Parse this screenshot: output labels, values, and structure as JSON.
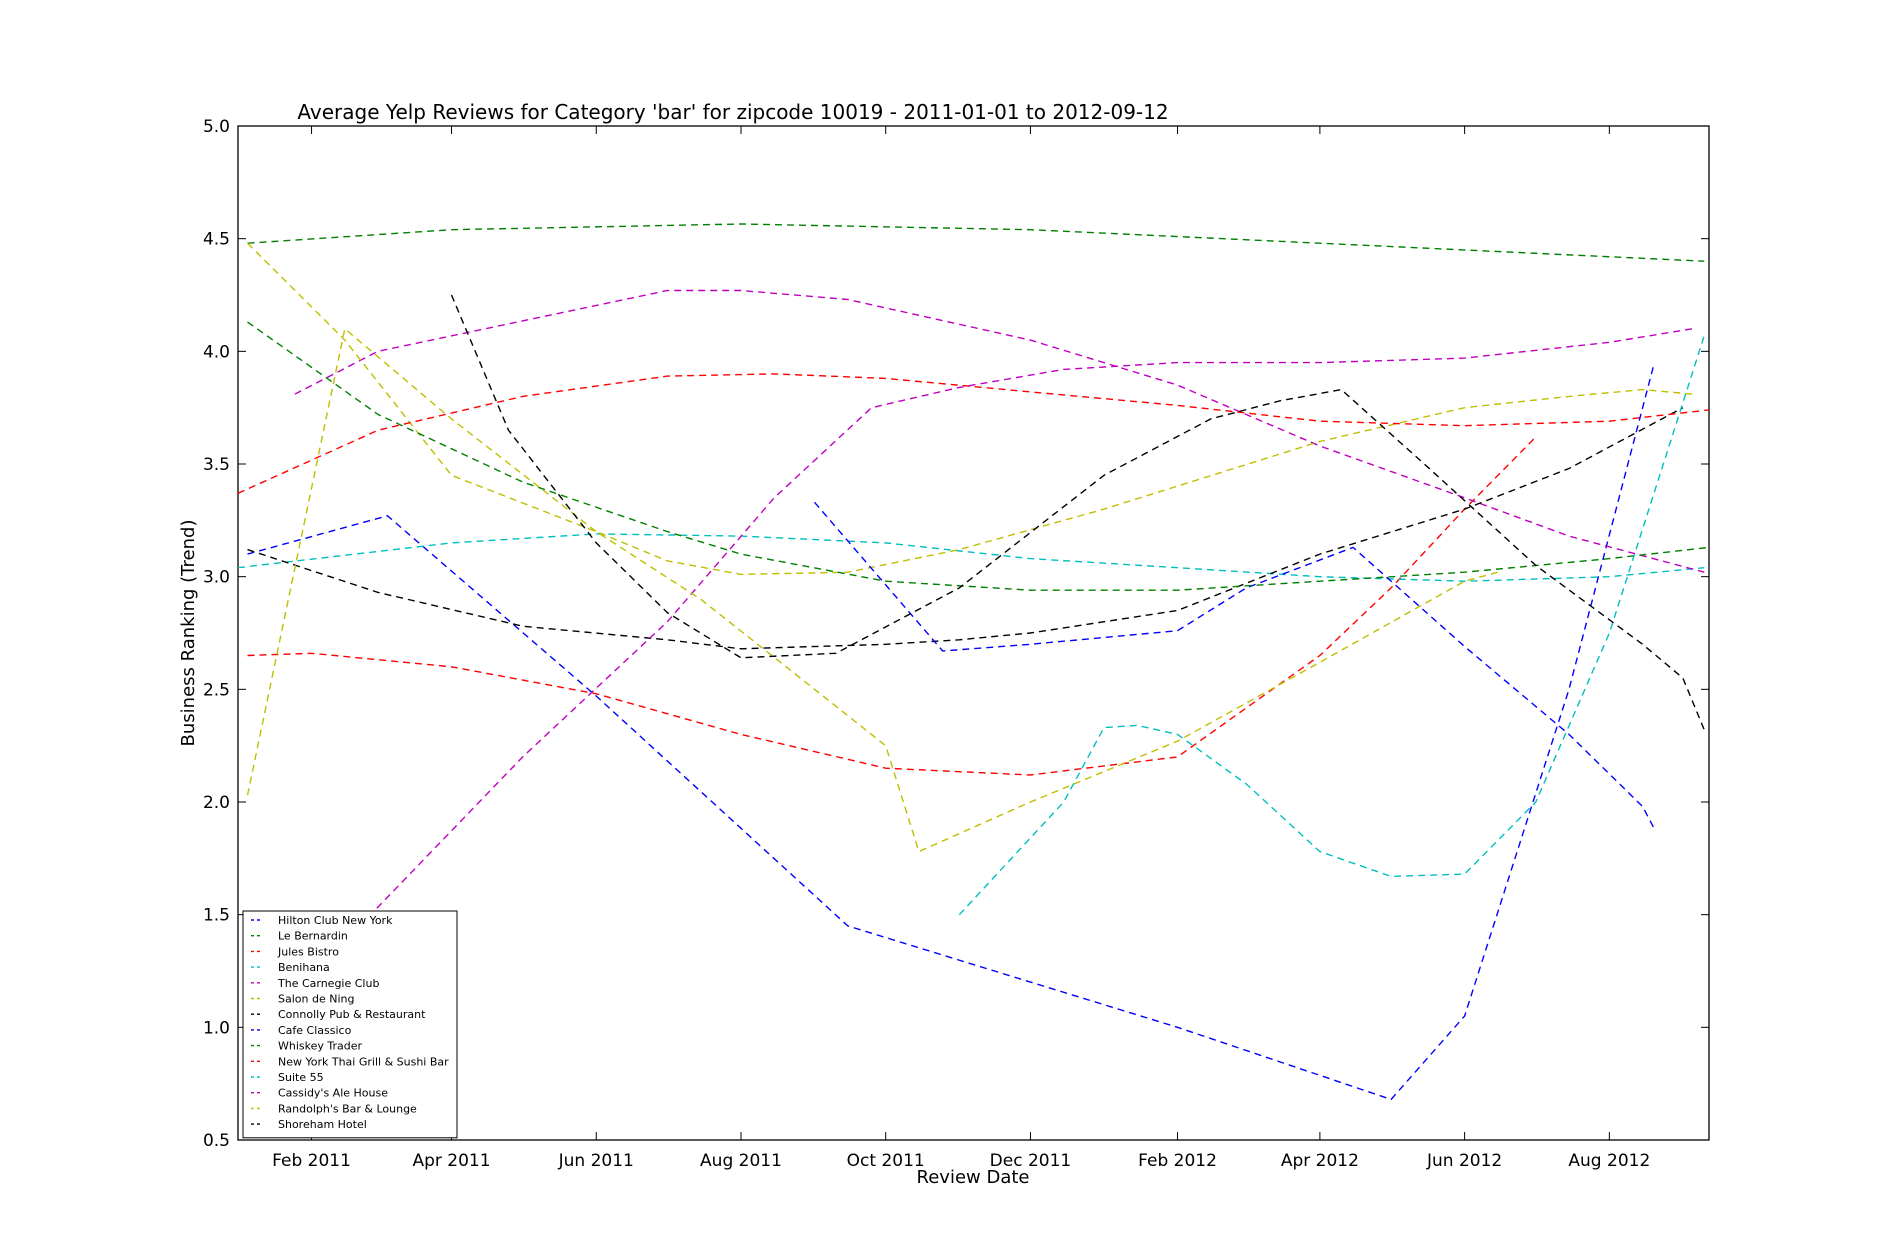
{
  "chart_data": {
    "type": "line",
    "title": "Average Yelp Reviews for Category 'bar' for zipcode 10019 - 2011-01-01 to 2012-09-12",
    "xlabel": "Review Date",
    "ylabel": "Business Ranking (Trend)",
    "xlim": [
      "2011-01-01",
      "2012-09-12"
    ],
    "ylim": [
      0.5,
      5.0
    ],
    "x_ticks": [
      {
        "date": "2011-02-01",
        "label": "Feb 2011"
      },
      {
        "date": "2011-04-01",
        "label": "Apr 2011"
      },
      {
        "date": "2011-06-01",
        "label": "Jun 2011"
      },
      {
        "date": "2011-08-01",
        "label": "Aug 2011"
      },
      {
        "date": "2011-10-01",
        "label": "Oct 2011"
      },
      {
        "date": "2011-12-01",
        "label": "Dec 2011"
      },
      {
        "date": "2012-02-01",
        "label": "Feb 2012"
      },
      {
        "date": "2012-04-01",
        "label": "Apr 2012"
      },
      {
        "date": "2012-06-01",
        "label": "Jun 2012"
      },
      {
        "date": "2012-08-01",
        "label": "Aug 2012"
      }
    ],
    "y_ticks": [
      "0.5",
      "1.0",
      "1.5",
      "2.0",
      "2.5",
      "3.0",
      "3.5",
      "4.0",
      "4.5",
      "5.0"
    ],
    "grid": false,
    "legend_position": "lower-left",
    "series": [
      {
        "name": "Hilton Club New York",
        "color": "#0000ff",
        "points": [
          [
            "2011-01-05",
            3.1
          ],
          [
            "2011-03-05",
            3.27
          ],
          [
            "2011-06-01",
            2.47
          ],
          [
            "2011-09-15",
            1.45
          ],
          [
            "2012-02-01",
            1.0
          ],
          [
            "2012-05-01",
            0.68
          ],
          [
            "2012-06-01",
            1.05
          ],
          [
            "2012-07-15",
            2.5
          ],
          [
            "2012-08-20",
            3.95
          ]
        ]
      },
      {
        "name": "Le Bernardin",
        "color": "#008000",
        "points": [
          [
            "2011-01-05",
            4.48
          ],
          [
            "2011-04-01",
            4.54
          ],
          [
            "2011-08-01",
            4.565
          ],
          [
            "2011-12-01",
            4.54
          ],
          [
            "2012-04-01",
            4.48
          ],
          [
            "2012-09-10",
            4.4
          ]
        ]
      },
      {
        "name": "Jules Bistro",
        "color": "#ff0000",
        "points": [
          [
            "2011-01-05",
            2.65
          ],
          [
            "2011-02-01",
            2.66
          ],
          [
            "2011-04-01",
            2.6
          ],
          [
            "2011-06-01",
            2.48
          ],
          [
            "2011-08-01",
            2.3
          ],
          [
            "2011-10-01",
            2.15
          ],
          [
            "2011-12-01",
            2.12
          ],
          [
            "2012-02-01",
            2.2
          ],
          [
            "2012-04-01",
            2.65
          ],
          [
            "2012-05-01",
            2.95
          ],
          [
            "2012-06-01",
            3.3
          ],
          [
            "2012-07-01",
            3.62
          ]
        ]
      },
      {
        "name": "Benihana",
        "color": "#00bfbf",
        "points": [
          [
            "2011-01-01",
            3.04
          ],
          [
            "2011-04-01",
            3.15
          ],
          [
            "2011-06-01",
            3.19
          ],
          [
            "2011-08-01",
            3.18
          ],
          [
            "2011-10-01",
            3.15
          ],
          [
            "2011-12-01",
            3.08
          ],
          [
            "2012-02-01",
            3.04
          ],
          [
            "2012-04-01",
            3.0
          ],
          [
            "2012-06-01",
            2.98
          ],
          [
            "2012-08-01",
            3.0
          ],
          [
            "2012-09-10",
            3.04
          ]
        ]
      },
      {
        "name": "The Carnegie Club",
        "color": "#bf00bf",
        "points": [
          [
            "2011-01-25",
            3.81
          ],
          [
            "2011-03-01",
            4.0
          ],
          [
            "2011-07-01",
            4.27
          ],
          [
            "2011-08-01",
            4.27
          ],
          [
            "2011-09-15",
            4.23
          ],
          [
            "2011-12-01",
            4.05
          ],
          [
            "2012-02-01",
            3.85
          ],
          [
            "2012-04-01",
            3.58
          ],
          [
            "2012-06-01",
            3.35
          ],
          [
            "2012-07-15",
            3.18
          ],
          [
            "2012-09-10",
            3.02
          ]
        ]
      },
      {
        "name": "Salon de Ning",
        "color": "#bfbf00",
        "points": [
          [
            "2011-01-05",
            4.48
          ],
          [
            "2011-02-15",
            4.05
          ],
          [
            "2011-04-01",
            3.45
          ],
          [
            "2011-06-01",
            3.2
          ],
          [
            "2011-07-01",
            3.07
          ],
          [
            "2011-08-01",
            3.01
          ],
          [
            "2011-09-15",
            3.02
          ],
          [
            "2011-11-01",
            3.12
          ],
          [
            "2012-01-01",
            3.3
          ],
          [
            "2012-04-01",
            3.6
          ],
          [
            "2012-06-01",
            3.75
          ],
          [
            "2012-07-15",
            3.8
          ],
          [
            "2012-08-15",
            3.83
          ],
          [
            "2012-09-05",
            3.81
          ]
        ]
      },
      {
        "name": "Connolly Pub & Restaurant",
        "color": "#000000",
        "points": [
          [
            "2011-01-05",
            3.12
          ],
          [
            "2011-03-01",
            2.93
          ],
          [
            "2011-05-01",
            2.78
          ],
          [
            "2011-07-01",
            2.72
          ],
          [
            "2011-08-01",
            2.68
          ],
          [
            "2011-10-01",
            2.7
          ],
          [
            "2011-11-01",
            2.72
          ],
          [
            "2011-12-01",
            2.75
          ],
          [
            "2012-02-01",
            2.85
          ],
          [
            "2012-04-01",
            3.1
          ],
          [
            "2012-06-01",
            3.3
          ],
          [
            "2012-07-15",
            3.48
          ],
          [
            "2012-09-01",
            3.75
          ]
        ]
      },
      {
        "name": "Cafe Classico",
        "color": "#0000ff",
        "points": [
          [
            "2011-09-01",
            3.33
          ],
          [
            "2011-10-25",
            2.67
          ],
          [
            "2011-12-01",
            2.7
          ],
          [
            "2012-02-01",
            2.76
          ],
          [
            "2012-03-01",
            2.95
          ],
          [
            "2012-04-15",
            3.13
          ],
          [
            "2012-06-01",
            2.69
          ],
          [
            "2012-07-15",
            2.3
          ],
          [
            "2012-08-15",
            1.98
          ],
          [
            "2012-08-20",
            1.88
          ]
        ]
      },
      {
        "name": "Whiskey Trader",
        "color": "#008000",
        "points": [
          [
            "2011-01-05",
            4.13
          ],
          [
            "2011-03-01",
            3.72
          ],
          [
            "2011-05-01",
            3.42
          ],
          [
            "2011-07-01",
            3.2
          ],
          [
            "2011-08-01",
            3.1
          ],
          [
            "2011-10-01",
            2.98
          ],
          [
            "2011-12-01",
            2.94
          ],
          [
            "2012-02-01",
            2.94
          ],
          [
            "2012-04-01",
            2.98
          ],
          [
            "2012-06-01",
            3.02
          ],
          [
            "2012-08-01",
            3.08
          ],
          [
            "2012-09-12",
            3.13
          ]
        ]
      },
      {
        "name": "New York Thai Grill & Sushi Bar",
        "color": "#ff0000",
        "points": [
          [
            "2011-01-01",
            3.37
          ],
          [
            "2011-03-01",
            3.65
          ],
          [
            "2011-05-01",
            3.8
          ],
          [
            "2011-07-01",
            3.89
          ],
          [
            "2011-08-15",
            3.9
          ],
          [
            "2011-10-01",
            3.88
          ],
          [
            "2011-12-01",
            3.82
          ],
          [
            "2012-02-01",
            3.76
          ],
          [
            "2012-04-01",
            3.69
          ],
          [
            "2012-06-01",
            3.67
          ],
          [
            "2012-08-01",
            3.69
          ],
          [
            "2012-09-12",
            3.74
          ]
        ]
      },
      {
        "name": "Suite 55",
        "color": "#00bfbf",
        "points": [
          [
            "2011-11-01",
            1.5
          ],
          [
            "2011-12-15",
            2.0
          ],
          [
            "2012-01-01",
            2.33
          ],
          [
            "2012-01-15",
            2.34
          ],
          [
            "2012-02-01",
            2.3
          ],
          [
            "2012-03-01",
            2.08
          ],
          [
            "2012-04-01",
            1.78
          ],
          [
            "2012-05-01",
            1.67
          ],
          [
            "2012-06-01",
            1.68
          ],
          [
            "2012-07-01",
            2.0
          ],
          [
            "2012-08-01",
            2.75
          ],
          [
            "2012-09-10",
            4.07
          ]
        ]
      },
      {
        "name": "Cassidy's Ale House",
        "color": "#bf00bf",
        "points": [
          [
            "2011-02-25",
            1.49
          ],
          [
            "2011-05-01",
            2.2
          ],
          [
            "2011-07-01",
            2.8
          ],
          [
            "2011-08-15",
            3.35
          ],
          [
            "2011-09-25",
            3.75
          ],
          [
            "2011-11-01",
            3.84
          ],
          [
            "2011-12-15",
            3.92
          ],
          [
            "2012-02-01",
            3.95
          ],
          [
            "2012-04-01",
            3.95
          ],
          [
            "2012-06-01",
            3.97
          ],
          [
            "2012-08-01",
            4.04
          ],
          [
            "2012-09-05",
            4.1
          ]
        ]
      },
      {
        "name": "Randolph's Bar & Lounge",
        "color": "#bfbf00",
        "points": [
          [
            "2011-01-05",
            2.03
          ],
          [
            "2011-02-15",
            4.1
          ],
          [
            "2011-04-01",
            3.7
          ],
          [
            "2011-06-01",
            3.2
          ],
          [
            "2011-07-15",
            2.9
          ],
          [
            "2011-09-01",
            2.5
          ],
          [
            "2011-10-01",
            2.25
          ],
          [
            "2011-10-15",
            1.78
          ],
          [
            "2011-12-01",
            2.0
          ],
          [
            "2012-02-01",
            2.27
          ],
          [
            "2012-04-01",
            2.62
          ],
          [
            "2012-06-01",
            2.98
          ],
          [
            "2012-06-15",
            3.02
          ]
        ]
      },
      {
        "name": "Shoreham Hotel",
        "color": "#000000",
        "points": [
          [
            "2011-04-01",
            4.25
          ],
          [
            "2011-04-25",
            3.65
          ],
          [
            "2011-06-01",
            3.15
          ],
          [
            "2011-07-01",
            2.84
          ],
          [
            "2011-08-01",
            2.64
          ],
          [
            "2011-09-10",
            2.66
          ],
          [
            "2011-11-01",
            2.95
          ],
          [
            "2012-01-01",
            3.45
          ],
          [
            "2012-02-15",
            3.7
          ],
          [
            "2012-03-15",
            3.78
          ],
          [
            "2012-04-10",
            3.83
          ],
          [
            "2012-05-15",
            3.5
          ],
          [
            "2012-07-01",
            3.05
          ],
          [
            "2012-08-15",
            2.7
          ],
          [
            "2012-09-01",
            2.55
          ],
          [
            "2012-09-10",
            2.32
          ]
        ]
      }
    ]
  }
}
